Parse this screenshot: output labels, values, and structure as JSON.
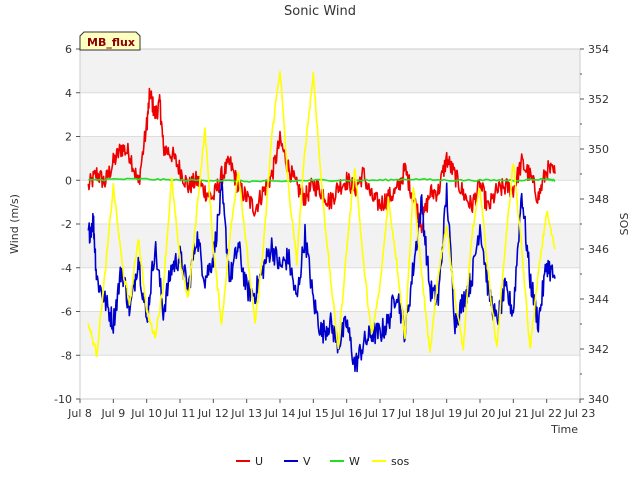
{
  "chart_data": {
    "type": "line",
    "title": "Sonic Wind",
    "xlabel": "Time",
    "ylabel": "Wind (m/s)",
    "y2label": "SOS",
    "site_label": "MB_flux",
    "xlim": [
      8,
      23
    ],
    "ylim": [
      -10,
      6
    ],
    "y2lim": [
      340,
      354
    ],
    "x_ticks": [
      8,
      9,
      10,
      11,
      12,
      13,
      14,
      15,
      16,
      17,
      18,
      19,
      20,
      21,
      22,
      23
    ],
    "x_tick_labels": [
      "Jul 8",
      "Jul 9",
      "Jul 10",
      "Jul 11",
      "Jul 12",
      "Jul 13",
      "Jul 14",
      "Jul 15",
      "Jul 16",
      "Jul 17",
      "Jul 18",
      "Jul 19",
      "Jul 20",
      "Jul 21",
      "Jul 22",
      "Jul 23"
    ],
    "y_ticks": [
      -10,
      -8,
      -6,
      -4,
      -2,
      0,
      2,
      4,
      6
    ],
    "y2_ticks": [
      340,
      342,
      344,
      346,
      348,
      350,
      352,
      354
    ],
    "grid": true,
    "legend_position": "bottom-center",
    "series": [
      {
        "name": "U",
        "axis": "left",
        "color": "#ee0000",
        "x": [
          8.25,
          8.5,
          8.75,
          9,
          9.25,
          9.5,
          9.75,
          10,
          10.1,
          10.25,
          10.4,
          10.5,
          10.75,
          11,
          11.25,
          11.5,
          11.75,
          12,
          12.25,
          12.5,
          12.75,
          13,
          13.25,
          13.5,
          13.75,
          14,
          14.25,
          14.5,
          14.75,
          15,
          15.25,
          15.5,
          15.75,
          16,
          16.25,
          16.5,
          16.75,
          17,
          17.25,
          17.5,
          17.75,
          18,
          18.25,
          18.5,
          18.75,
          19,
          19.25,
          19.5,
          19.75,
          20,
          20.25,
          20.5,
          20.75,
          21,
          21.25,
          21.5,
          21.75,
          22,
          22.25
        ],
        "values": [
          -0.3,
          0.3,
          -0.1,
          0.8,
          1.5,
          1.2,
          -0.2,
          2.5,
          4.0,
          3.0,
          3.5,
          1.5,
          1.2,
          0.5,
          -0.3,
          0.0,
          -0.5,
          -0.8,
          0.2,
          0.8,
          -0.3,
          -0.8,
          -1.3,
          -0.5,
          0.2,
          1.8,
          0.6,
          -0.3,
          -0.8,
          -0.2,
          -0.5,
          -1.0,
          -0.3,
          0.0,
          -0.4,
          0.3,
          -0.8,
          -1.1,
          -0.8,
          -0.5,
          0.5,
          -0.8,
          -2.0,
          -0.6,
          -0.5,
          1.0,
          0.2,
          -0.6,
          -1.2,
          -0.2,
          -1.3,
          -0.5,
          -0.3,
          -0.4,
          0.8,
          0.2,
          -0.8,
          0.5,
          0.3
        ]
      },
      {
        "name": "V",
        "axis": "left",
        "color": "#0000cc",
        "x": [
          8.25,
          8.4,
          8.5,
          8.75,
          9,
          9.25,
          9.5,
          9.75,
          10,
          10.25,
          10.5,
          10.75,
          11,
          11.25,
          11.5,
          11.75,
          12,
          12.25,
          12.5,
          12.75,
          13,
          13.25,
          13.5,
          13.75,
          14,
          14.25,
          14.5,
          14.75,
          15,
          15.25,
          15.5,
          15.75,
          16,
          16.25,
          16.5,
          16.75,
          17,
          17.25,
          17.5,
          17.75,
          18,
          18.25,
          18.5,
          18.75,
          19,
          19.25,
          19.5,
          19.75,
          20,
          20.25,
          20.5,
          20.75,
          21,
          21.25,
          21.5,
          21.75,
          22,
          22.25
        ],
        "values": [
          -2.5,
          -1.8,
          -4.5,
          -5.5,
          -6.5,
          -4.0,
          -6.0,
          -3.5,
          -6.5,
          -3.0,
          -6.0,
          -4.0,
          -3.5,
          -5.0,
          -2.5,
          -4.5,
          -3.5,
          -0.5,
          -4.5,
          -3.0,
          -5.0,
          -5.2,
          -4.0,
          -3.0,
          -4.0,
          -3.5,
          -5.5,
          -2.5,
          -5.5,
          -7.0,
          -6.5,
          -7.5,
          -6.5,
          -8.5,
          -7.5,
          -7.0,
          -7.0,
          -6.5,
          -5.0,
          -7.0,
          -4.0,
          -1.0,
          -5.0,
          -5.5,
          -0.5,
          -6.5,
          -5.5,
          -4.5,
          -2.0,
          -5.0,
          -6.5,
          -5.0,
          -6.0,
          -0.5,
          -4.5,
          -6.5,
          -3.8,
          -4.5
        ]
      },
      {
        "name": "W",
        "axis": "left",
        "color": "#22dd22",
        "x": [
          8.25,
          9,
          10,
          11,
          12,
          13,
          14,
          15,
          16,
          17,
          18,
          19,
          20,
          21,
          22,
          22.25
        ],
        "values": [
          0.0,
          0.05,
          0.05,
          0.0,
          0.0,
          -0.05,
          -0.05,
          0.0,
          0.0,
          0.0,
          0.05,
          0.0,
          0.0,
          0.0,
          0.05,
          0.0
        ],
        "noise": 0.04
      },
      {
        "name": "sos",
        "axis": "right",
        "color": "#ffff00",
        "x": [
          8.25,
          8.5,
          8.75,
          9,
          9.3,
          9.5,
          9.75,
          10,
          10.25,
          10.5,
          10.75,
          11,
          11.25,
          11.5,
          11.75,
          12,
          12.25,
          12.5,
          12.75,
          13,
          13.25,
          13.5,
          13.75,
          14,
          14.25,
          14.5,
          14.75,
          15,
          15.25,
          15.5,
          15.75,
          16,
          16.25,
          16.5,
          16.75,
          17,
          17.25,
          17.5,
          17.75,
          18,
          18.25,
          18.5,
          18.75,
          19,
          19.25,
          19.5,
          19.75,
          20,
          20.25,
          20.5,
          20.75,
          21,
          21.25,
          21.5,
          21.75,
          22,
          22.25
        ],
        "values": [
          343.0,
          341.8,
          345.0,
          348.5,
          345.0,
          343.8,
          346.5,
          343.5,
          342.5,
          344.5,
          348.8,
          345.5,
          344.0,
          347.5,
          350.8,
          346.0,
          343.0,
          346.5,
          349.2,
          346.0,
          343.0,
          346.0,
          350.5,
          353.2,
          348.5,
          345.5,
          350.0,
          353.0,
          348.5,
          345.0,
          342.0,
          346.0,
          349.3,
          345.5,
          342.5,
          344.5,
          348.0,
          345.5,
          342.5,
          348.5,
          345.0,
          341.8,
          345.0,
          347.0,
          344.0,
          342.0,
          346.5,
          348.5,
          345.0,
          342.0,
          346.0,
          349.5,
          346.0,
          342.0,
          345.0,
          347.5,
          346.0
        ]
      }
    ]
  }
}
